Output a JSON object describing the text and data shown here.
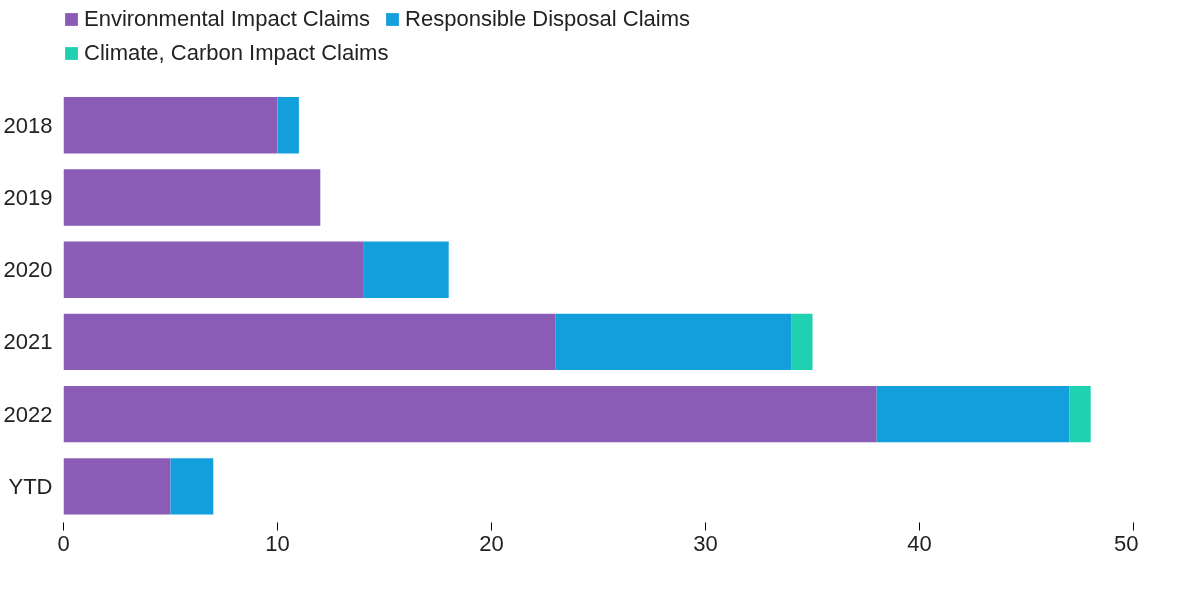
{
  "chart_data": {
    "type": "bar",
    "orientation": "horizontal",
    "stacked": true,
    "categories": [
      "2018",
      "2019",
      "2020",
      "2021",
      "2022",
      "YTD"
    ],
    "series": [
      {
        "name": "Environmental Impact Claims",
        "color": "#8a5cb5",
        "values": [
          10,
          12,
          14,
          23,
          38,
          5
        ]
      },
      {
        "name": "Responsible Disposal Claims",
        "color": "#139fdc",
        "values": [
          1,
          0,
          4,
          11,
          9,
          2
        ]
      },
      {
        "name": "Climate, Carbon Impact Claims",
        "color": "#1fd1b0",
        "values": [
          0,
          0,
          0,
          1,
          1,
          0
        ]
      }
    ],
    "xlim": [
      0,
      50
    ],
    "xticks": [
      0,
      10,
      20,
      30,
      40,
      50
    ],
    "grid": false,
    "legend": "top left"
  }
}
